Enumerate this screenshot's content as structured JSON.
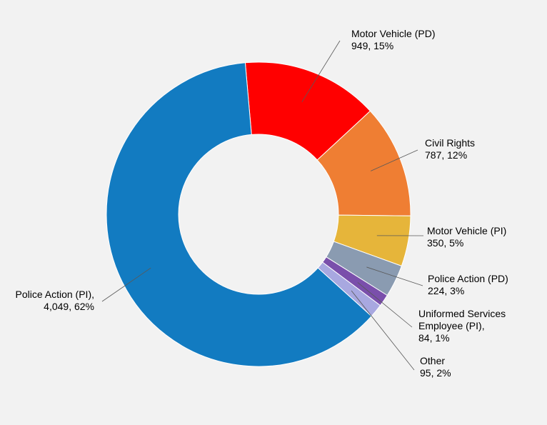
{
  "chart_data": {
    "type": "pie",
    "variant": "donut",
    "title": "",
    "legend": "none",
    "slices": [
      {
        "name": "Motor Vehicle (PD)",
        "value": 949,
        "value_label": "949, 15%",
        "percent": 15,
        "color": "#ff0000"
      },
      {
        "name": "Civil Rights",
        "value": 787,
        "value_label": "787, 12%",
        "percent": 12,
        "color": "#ef7e33"
      },
      {
        "name": "Motor Vehicle (PI)",
        "value": 350,
        "value_label": "350, 5%",
        "percent": 5,
        "color": "#e6b53a"
      },
      {
        "name": "Police Action (PD)",
        "value": 224,
        "value_label": "224, 3%",
        "percent": 3,
        "color": "#8a9bb1"
      },
      {
        "name": "Uniformed Services Employee (PI),",
        "value": 84,
        "value_label": "84, 1%",
        "percent": 1,
        "color": "#7a4fab"
      },
      {
        "name": "Other",
        "value": 95,
        "value_label": "95, 2%",
        "percent": 2,
        "color": "#a8a8e0"
      },
      {
        "name": "Police Action (PI),",
        "value": 4049,
        "value_label": "4,049, 62%",
        "percent": 62,
        "color": "#127bc1"
      }
    ]
  }
}
